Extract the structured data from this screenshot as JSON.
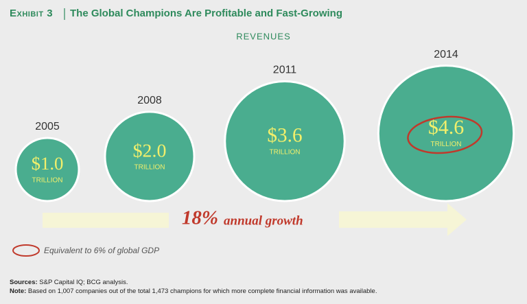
{
  "chart_data": {
    "type": "bubble",
    "exhibit": "Exhibit 3",
    "title": "The Global Champions Are Profitable and Fast-Growing",
    "subtitle": "REVENUES",
    "categories": [
      "2005",
      "2008",
      "2011",
      "2014"
    ],
    "values": [
      1.0,
      2.0,
      3.6,
      4.6
    ],
    "value_labels": [
      "$1.0",
      "$2.0",
      "$3.6",
      "$4.6"
    ],
    "unit": "TRILLION",
    "color": "#4aad8f",
    "label_color": "#f2ef6b",
    "highlight_index": 3,
    "highlight_color": "#c0392b",
    "growth_rate": "18%",
    "growth_text": "annual growth",
    "legend": "Equivalent to 6% of global GDP",
    "sources_label": "Sources:",
    "sources": "S&P Capital IQ; BCG analysis.",
    "note_label": "Note:",
    "note": "Based on 1,007 companies out of the total 1,473 champions for which more complete financial information was available."
  }
}
